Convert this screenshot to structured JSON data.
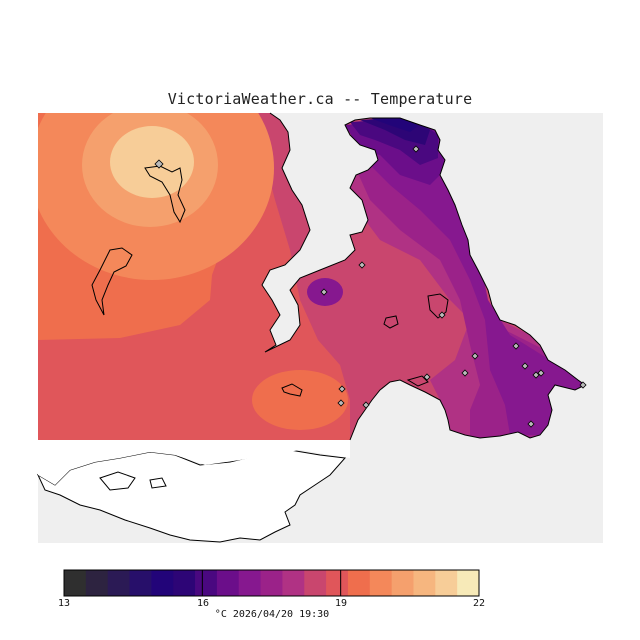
{
  "title": "VictoriaWeather.ca -- Temperature",
  "legend": {
    "ticks": [
      "13",
      "16",
      "19",
      "22"
    ],
    "min": 13,
    "max": 22,
    "step": 0.5,
    "colors": [
      "#2f2f2f",
      "#2d2340",
      "#2b1a55",
      "#270f6a",
      "#220479",
      "#2d0576",
      "#4a0880",
      "#6b0e8a",
      "#86188f",
      "#9b2289",
      "#b03284",
      "#c9466e",
      "#e0565a",
      "#ef6e4d",
      "#f4885a",
      "#f5a06d",
      "#f6b67f",
      "#f7cd98",
      "#f7eab8"
    ]
  },
  "caption": "°C  2026/04/20 19:30",
  "colors": {
    "background": "#efefef",
    "coast": "#000000",
    "station_marker": "#bbbbbb"
  }
}
